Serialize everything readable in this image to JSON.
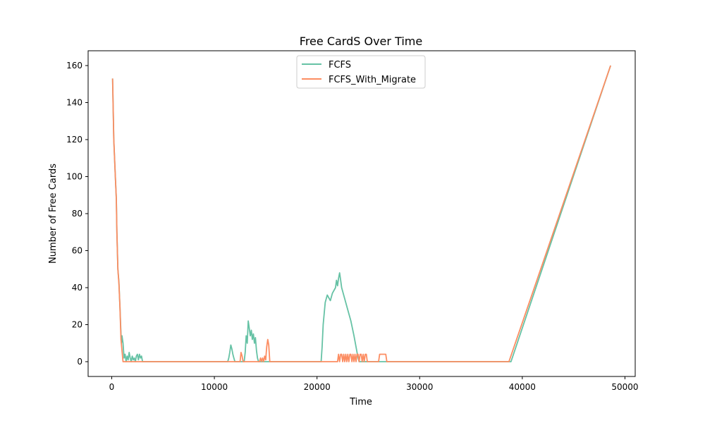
{
  "chart_data": {
    "type": "line",
    "title": "Free CardS Over Time",
    "xlabel": "Time",
    "ylabel": "Number of Free Cards",
    "xlim": [
      -2300,
      51000
    ],
    "ylim": [
      -8,
      168
    ],
    "x_ticks": [
      0,
      10000,
      20000,
      30000,
      40000,
      50000
    ],
    "y_ticks": [
      0,
      20,
      40,
      60,
      80,
      100,
      120,
      140,
      160
    ],
    "x_tick_labels": [
      "0",
      "10000",
      "20000",
      "30000",
      "40000",
      "50000"
    ],
    "y_tick_labels": [
      "0",
      "20",
      "40",
      "60",
      "80",
      "100",
      "120",
      "140",
      "160"
    ],
    "grid": false,
    "legend_position": "upper center",
    "series": [
      {
        "name": "FCFS",
        "color": "#66c2a5",
        "points": [
          [
            80,
            153
          ],
          [
            200,
            120
          ],
          [
            350,
            100
          ],
          [
            450,
            88
          ],
          [
            500,
            70
          ],
          [
            600,
            50
          ],
          [
            700,
            43
          ],
          [
            800,
            30
          ],
          [
            900,
            15
          ],
          [
            950,
            10
          ],
          [
            1000,
            14
          ],
          [
            1100,
            10
          ],
          [
            1200,
            2
          ],
          [
            1300,
            4
          ],
          [
            1400,
            0
          ],
          [
            1500,
            3
          ],
          [
            1600,
            1
          ],
          [
            1700,
            5
          ],
          [
            1800,
            2
          ],
          [
            1900,
            0
          ],
          [
            2000,
            3
          ],
          [
            2100,
            1
          ],
          [
            2200,
            2
          ],
          [
            2300,
            0
          ],
          [
            2400,
            3
          ],
          [
            2500,
            4
          ],
          [
            2600,
            1
          ],
          [
            2700,
            4
          ],
          [
            2800,
            2
          ],
          [
            2900,
            3
          ],
          [
            3000,
            0
          ],
          [
            11300,
            0
          ],
          [
            11400,
            2
          ],
          [
            11500,
            5
          ],
          [
            11600,
            9
          ],
          [
            11700,
            7
          ],
          [
            11800,
            4
          ],
          [
            11900,
            2
          ],
          [
            12000,
            0
          ],
          [
            12900,
            0
          ],
          [
            13000,
            5
          ],
          [
            13100,
            14
          ],
          [
            13200,
            10
          ],
          [
            13300,
            22
          ],
          [
            13400,
            18
          ],
          [
            13500,
            14
          ],
          [
            13600,
            17
          ],
          [
            13700,
            12
          ],
          [
            13800,
            15
          ],
          [
            13900,
            10
          ],
          [
            14000,
            13
          ],
          [
            14100,
            6
          ],
          [
            14200,
            2
          ],
          [
            14300,
            0
          ],
          [
            20400,
            0
          ],
          [
            20500,
            8
          ],
          [
            20600,
            20
          ],
          [
            20800,
            32
          ],
          [
            21000,
            36
          ],
          [
            21300,
            33
          ],
          [
            21500,
            37
          ],
          [
            21800,
            40
          ],
          [
            21900,
            44
          ],
          [
            22000,
            41
          ],
          [
            22100,
            45
          ],
          [
            22200,
            48
          ],
          [
            22300,
            44
          ],
          [
            22400,
            40
          ],
          [
            22600,
            36
          ],
          [
            22800,
            32
          ],
          [
            23000,
            28
          ],
          [
            23300,
            22
          ],
          [
            23600,
            14
          ],
          [
            23800,
            8
          ],
          [
            24000,
            2
          ],
          [
            24100,
            0
          ],
          [
            38900,
            0
          ],
          [
            48600,
            160
          ]
        ]
      },
      {
        "name": "FCFS_With_Migrate",
        "color": "#fc8d62",
        "points": [
          [
            80,
            153
          ],
          [
            200,
            120
          ],
          [
            350,
            100
          ],
          [
            450,
            88
          ],
          [
            500,
            70
          ],
          [
            600,
            50
          ],
          [
            700,
            42
          ],
          [
            800,
            30
          ],
          [
            900,
            12
          ],
          [
            1100,
            0
          ],
          [
            12500,
            0
          ],
          [
            12600,
            5
          ],
          [
            12700,
            3
          ],
          [
            12800,
            0
          ],
          [
            14400,
            0
          ],
          [
            14500,
            2
          ],
          [
            14600,
            0
          ],
          [
            14700,
            2
          ],
          [
            14800,
            0
          ],
          [
            14900,
            3
          ],
          [
            15000,
            1
          ],
          [
            15100,
            8
          ],
          [
            15200,
            12
          ],
          [
            15300,
            9
          ],
          [
            15400,
            0
          ],
          [
            22000,
            0
          ],
          [
            22100,
            4
          ],
          [
            22200,
            0
          ],
          [
            22300,
            4
          ],
          [
            22400,
            4
          ],
          [
            22500,
            0
          ],
          [
            22600,
            4
          ],
          [
            22700,
            0
          ],
          [
            22800,
            4
          ],
          [
            22900,
            0
          ],
          [
            23000,
            4
          ],
          [
            23100,
            0
          ],
          [
            23200,
            4
          ],
          [
            23300,
            4
          ],
          [
            23400,
            0
          ],
          [
            23500,
            4
          ],
          [
            23600,
            0
          ],
          [
            23700,
            4
          ],
          [
            23800,
            0
          ],
          [
            23900,
            4
          ],
          [
            24000,
            4
          ],
          [
            24100,
            0
          ],
          [
            24200,
            4
          ],
          [
            24300,
            4
          ],
          [
            24400,
            0
          ],
          [
            24500,
            4
          ],
          [
            24600,
            0
          ],
          [
            24700,
            4
          ],
          [
            24800,
            4
          ],
          [
            24900,
            0
          ],
          [
            26000,
            0
          ],
          [
            26100,
            4
          ],
          [
            26700,
            4
          ],
          [
            26800,
            0
          ],
          [
            38700,
            0
          ],
          [
            48600,
            160
          ]
        ]
      }
    ]
  }
}
